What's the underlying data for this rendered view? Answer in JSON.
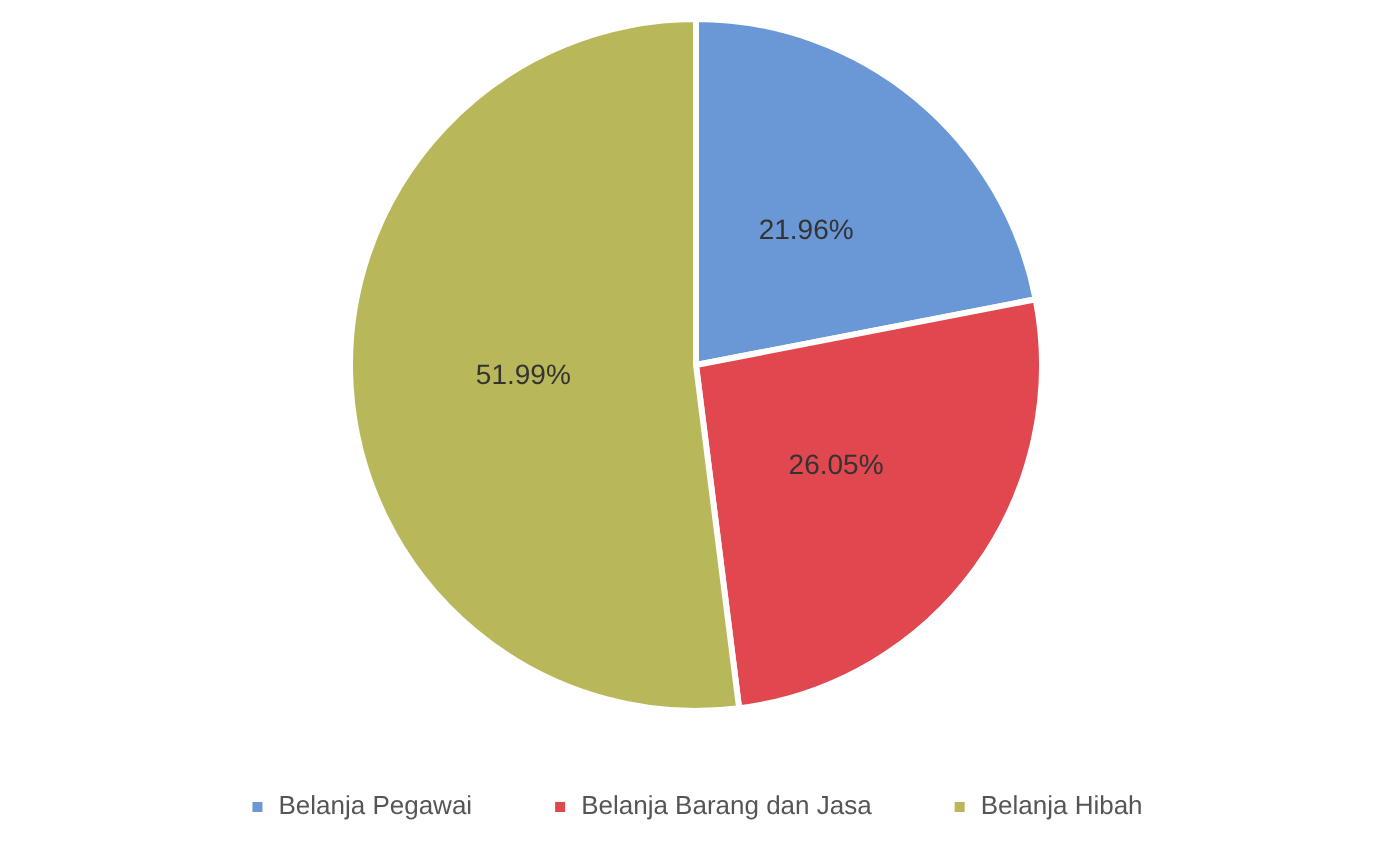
{
  "chart_data": {
    "type": "pie",
    "categories": [
      "Belanja Pegawai",
      "Belanja Barang dan Jasa",
      "Belanja Hibah"
    ],
    "values": [
      21.96,
      26.05,
      51.99
    ],
    "colors": [
      "#6a98d6",
      "#e0474f",
      "#b8b85a"
    ],
    "value_labels": [
      "21.96%",
      "26.05%",
      "51.99%"
    ],
    "legend": "bottom"
  }
}
